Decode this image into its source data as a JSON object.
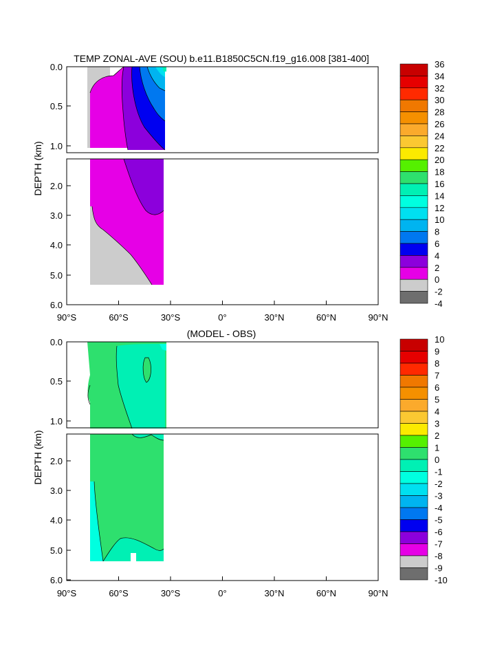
{
  "chart_data": [
    {
      "type": "heatmap",
      "title": "TEMP ZONAL-AVE (SOU) b.e11.B1850C5CN.f19_g16.008 [381-400]",
      "ylabel": "DEPTH (km)",
      "upper_yticks": [
        "0.0",
        "0.5",
        "1.0"
      ],
      "lower_yticks": [
        "2.0",
        "3.0",
        "4.0",
        "5.0",
        "6.0"
      ],
      "xticks": [
        "90°S",
        "60°S",
        "30°S",
        "0°",
        "30°N",
        "60°N",
        "90°N"
      ],
      "x_range": [
        -90,
        90
      ],
      "y_range_km": [
        0,
        6
      ],
      "colorbar": {
        "labels": [
          "36",
          "34",
          "32",
          "30",
          "28",
          "26",
          "24",
          "22",
          "20",
          "18",
          "16",
          "14",
          "12",
          "10",
          "8",
          "6",
          "4",
          "2",
          "0",
          "-2",
          "-4"
        ],
        "colors": [
          "#c80000",
          "#e60000",
          "#ff2a00",
          "#f07800",
          "#f59000",
          "#fbaa2c",
          "#fbc832",
          "#fbea00",
          "#55f000",
          "#2ee06e",
          "#00f0b4",
          "#00ffe0",
          "#00e0f0",
          "#00b4f0",
          "#0078f0",
          "#0000f0",
          "#8c00dc",
          "#e600e6",
          "#cccccc",
          "#6e6e6e"
        ]
      },
      "regions": [
        {
          "name": "0 to 2",
          "color": "#e600e6"
        },
        {
          "name": "2 to 4",
          "color": "#8c00dc"
        },
        {
          "name": "4 to 6",
          "color": "#0000f0"
        },
        {
          "name": "6 to 8",
          "color": "#0078f0"
        },
        {
          "name": "8 to 10",
          "color": "#00b4f0"
        },
        {
          "name": "10 to 12",
          "color": "#00e0f0"
        },
        {
          "name": "-2 to 0",
          "color": "#cccccc"
        }
      ]
    },
    {
      "type": "heatmap",
      "title": "(MODEL - OBS)",
      "ylabel": "DEPTH (km)",
      "upper_yticks": [
        "0.0",
        "0.5",
        "1.0"
      ],
      "lower_yticks": [
        "2.0",
        "3.0",
        "4.0",
        "5.0",
        "6.0"
      ],
      "xticks": [
        "90°S",
        "60°S",
        "30°S",
        "0°",
        "30°N",
        "60°N",
        "90°N"
      ],
      "x_range": [
        -90,
        90
      ],
      "y_range_km": [
        0,
        6
      ],
      "colorbar": {
        "labels": [
          "10",
          "9",
          "8",
          "7",
          "6",
          "5",
          "4",
          "3",
          "2",
          "1",
          "0",
          "-1",
          "-2",
          "-3",
          "-4",
          "-5",
          "-6",
          "-7",
          "-8",
          "-9",
          "-10"
        ],
        "colors": [
          "#c80000",
          "#e60000",
          "#ff2a00",
          "#f07800",
          "#f59000",
          "#fbaa2c",
          "#fbc832",
          "#fbea00",
          "#55f000",
          "#2ee06e",
          "#00f0b4",
          "#00ffe0",
          "#00e0f0",
          "#00b4f0",
          "#0078f0",
          "#0000f0",
          "#8c00dc",
          "#e600e6",
          "#cccccc",
          "#6e6e6e"
        ]
      },
      "regions": [
        {
          "name": "0 to 1",
          "color": "#2ee06e"
        },
        {
          "name": "-1 to 0",
          "color": "#00f0b4"
        },
        {
          "name": "-2 to -1",
          "color": "#00ffe0"
        }
      ]
    }
  ]
}
